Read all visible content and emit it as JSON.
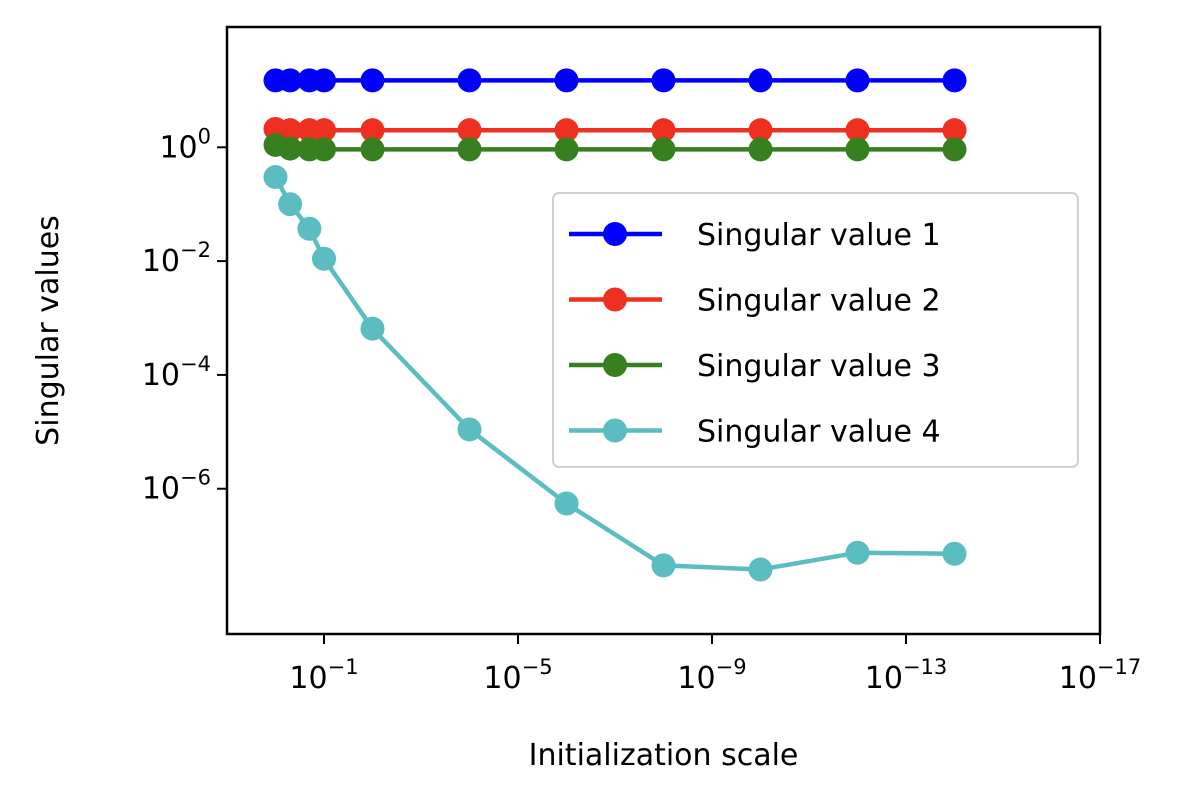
{
  "chart_data": {
    "type": "line",
    "xlabel": "Initialization scale",
    "ylabel": "Singular values",
    "x_scale": "log",
    "x_inverted": true,
    "y_scale": "log",
    "xlim": [
      10,
      1e-17
    ],
    "ylim": [
      2.8e-09,
      130
    ],
    "x_ticks": [
      {
        "value": 0.1,
        "base": "10",
        "exp": "−1"
      },
      {
        "value": 1e-05,
        "base": "10",
        "exp": "−5"
      },
      {
        "value": 1e-09,
        "base": "10",
        "exp": "−9"
      },
      {
        "value": 1e-13,
        "base": "10",
        "exp": "−13"
      },
      {
        "value": 1e-17,
        "base": "10",
        "exp": "−17"
      }
    ],
    "y_ticks": [
      {
        "value": 1,
        "base": "10",
        "exp": "0"
      },
      {
        "value": 0.01,
        "base": "10",
        "exp": "−2"
      },
      {
        "value": 0.0001,
        "base": "10",
        "exp": "−4"
      },
      {
        "value": 1e-06,
        "base": "10",
        "exp": "−6"
      }
    ],
    "x": [
      1,
      0.5,
      0.2,
      0.1,
      0.01,
      0.0001,
      1e-06,
      1e-08,
      1e-10,
      1e-12,
      1e-14
    ],
    "series": [
      {
        "name": "Singular value 1",
        "color": "#0000ff",
        "values": [
          15,
          15,
          15,
          15,
          15,
          15,
          15,
          15,
          15,
          15,
          15
        ]
      },
      {
        "name": "Singular value 2",
        "color": "#ee3020",
        "values": [
          2.1,
          2.0,
          2.0,
          2.0,
          2.0,
          2.0,
          2.0,
          2.0,
          2.0,
          2.0,
          2.0
        ]
      },
      {
        "name": "Singular value 3",
        "color": "#38801f",
        "values": [
          1.1,
          0.95,
          0.92,
          0.92,
          0.92,
          0.92,
          0.92,
          0.92,
          0.92,
          0.92,
          0.92
        ]
      },
      {
        "name": "Singular value 4",
        "color": "#5bbcc1",
        "values": [
          0.3,
          0.1,
          0.037,
          0.011,
          0.00065,
          1.1e-05,
          5.5e-07,
          4.5e-08,
          3.8e-08,
          7.5e-08,
          7.2e-08
        ]
      }
    ],
    "legend": "center-right",
    "grid": false
  }
}
